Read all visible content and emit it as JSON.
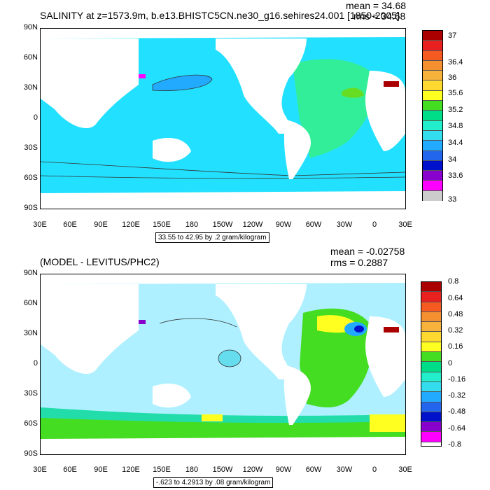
{
  "panel1": {
    "title": "SALINITY at z=1573.9m, b.e13.BHISTC5CN.ne30_g16.sehires24.001 [1850-2005]",
    "mean_text": "mean = 34.68",
    "rms_text": "rms = 34.68",
    "range_text": "33.55 to 42.95 by .2 gram/kilogram",
    "legend_labels": [
      "37",
      "36.4",
      "36",
      "35.6",
      "35.2",
      "34.8",
      "34.4",
      "34",
      "33.6",
      "33"
    ]
  },
  "panel2": {
    "title": "(MODEL - LEVITUS/PHC2)",
    "mean_text": "mean = -0.02758",
    "rms_text": "rms = 0.2887",
    "range_text": "-.623 to 4.2913 by .08 gram/kilogram",
    "legend_labels": [
      "0.8",
      "0.64",
      "0.48",
      "0.32",
      "0.16",
      "0",
      "-0.16",
      "-0.32",
      "-0.48",
      "-0.64",
      "-0.8"
    ]
  },
  "axes": {
    "y_ticks": [
      "90N",
      "60N",
      "30N",
      "0",
      "30S",
      "60S",
      "90S"
    ],
    "x_ticks": [
      "30E",
      "60E",
      "90E",
      "120E",
      "150E",
      "180",
      "150W",
      "120W",
      "90W",
      "60W",
      "30W",
      "0",
      "30E"
    ]
  },
  "colors": {
    "legend_scale": [
      "#aa0000",
      "#e82020",
      "#f55a20",
      "#f59030",
      "#f6b23a",
      "#ffd830",
      "#ffff20",
      "#44dd22",
      "#00dd88",
      "#22eecc",
      "#33ddee",
      "#22aaff",
      "#2266ee",
      "#0011cc",
      "#8800cc",
      "#ff00ff",
      "#cccccc",
      "#777777"
    ],
    "ocean_panel1": "#22e0ff",
    "ocean_panel2": "#aef0ff",
    "land": "#ffffff"
  }
}
